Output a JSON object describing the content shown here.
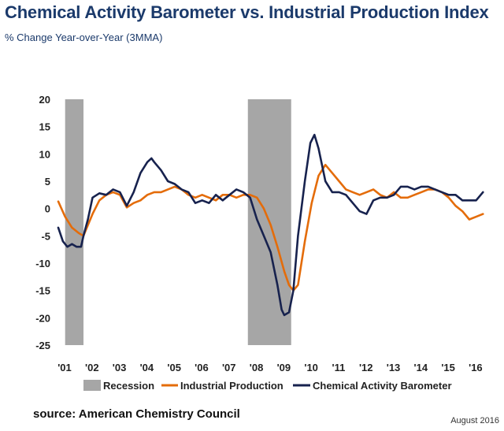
{
  "title": "Chemical Activity Barometer vs. Industrial Production Index",
  "subtitle": "% Change Year-over-Year (3MMA)",
  "source": "source: American Chemistry Council",
  "date": "August 2016",
  "colors": {
    "recession": "#a6a6a6",
    "industrial": "#e46c0a",
    "cab": "#17224e",
    "title": "#1b3a6b"
  },
  "chart_data": {
    "type": "line",
    "title": "Chemical Activity Barometer vs. Industrial Production Index",
    "subtitle": "% Change Year-over-Year (3MMA)",
    "xlabel": "",
    "ylabel": "",
    "xlim": [
      2001.0,
      2016.75
    ],
    "ylim": [
      -25,
      20
    ],
    "yticks": [
      20,
      15,
      10,
      5,
      0,
      -5,
      -10,
      -15,
      -20,
      -25
    ],
    "xticks": [
      "'01",
      "'02",
      "'03",
      "'04",
      "'05",
      "'06",
      "'07",
      "'08",
      "'09",
      "'10",
      "'11",
      "'12",
      "'13",
      "'14",
      "'15",
      "'16"
    ],
    "grid": false,
    "legend_position": "bottom",
    "recessions": [
      [
        2001.25,
        2001.92
      ],
      [
        2007.92,
        2009.5
      ]
    ],
    "legend": [
      "Recession",
      "Industrial Production",
      "Chemical Activity Barometer"
    ],
    "series": [
      {
        "name": "Industrial Production",
        "x": [
          2001.0,
          2001.25,
          2001.5,
          2001.75,
          2001.92,
          2002.25,
          2002.5,
          2002.75,
          2003.0,
          2003.25,
          2003.5,
          2003.75,
          2004.0,
          2004.25,
          2004.5,
          2004.75,
          2005.0,
          2005.25,
          2005.5,
          2005.75,
          2006.0,
          2006.25,
          2006.5,
          2006.75,
          2007.0,
          2007.25,
          2007.5,
          2007.75,
          2008.0,
          2008.25,
          2008.5,
          2008.75,
          2009.0,
          2009.25,
          2009.42,
          2009.58,
          2009.75,
          2010.0,
          2010.25,
          2010.5,
          2010.75,
          2011.0,
          2011.25,
          2011.5,
          2011.75,
          2012.0,
          2012.25,
          2012.5,
          2012.75,
          2013.0,
          2013.25,
          2013.5,
          2013.75,
          2014.0,
          2014.25,
          2014.5,
          2014.75,
          2015.0,
          2015.25,
          2015.5,
          2015.75,
          2016.0,
          2016.25,
          2016.5
        ],
        "y": [
          1.3,
          -1.5,
          -3.5,
          -4.5,
          -5.0,
          -1.0,
          1.5,
          2.5,
          3.0,
          2.5,
          0.2,
          1.0,
          1.5,
          2.5,
          3.0,
          3.0,
          3.5,
          4.0,
          3.5,
          2.5,
          2.0,
          2.5,
          2.0,
          1.5,
          2.5,
          2.5,
          2.0,
          2.5,
          2.5,
          2.0,
          0.0,
          -3.0,
          -7.0,
          -11.5,
          -14.0,
          -15.0,
          -14.0,
          -6.0,
          1.0,
          6.0,
          8.0,
          6.5,
          5.0,
          3.5,
          3.0,
          2.5,
          3.0,
          3.5,
          2.5,
          2.0,
          3.0,
          2.0,
          2.0,
          2.5,
          3.0,
          3.5,
          3.5,
          3.0,
          2.0,
          0.5,
          -0.5,
          -2.0,
          -1.5,
          -1.0
        ]
      },
      {
        "name": "Chemical Activity Barometer",
        "x": [
          2001.0,
          2001.17,
          2001.33,
          2001.5,
          2001.67,
          2001.83,
          2001.92,
          2002.08,
          2002.25,
          2002.5,
          2002.75,
          2003.0,
          2003.25,
          2003.5,
          2003.75,
          2004.0,
          2004.25,
          2004.4,
          2004.5,
          2004.75,
          2005.0,
          2005.25,
          2005.5,
          2005.75,
          2006.0,
          2006.25,
          2006.5,
          2006.75,
          2007.0,
          2007.25,
          2007.5,
          2007.75,
          2008.0,
          2008.25,
          2008.5,
          2008.75,
          2009.0,
          2009.15,
          2009.25,
          2009.42,
          2009.58,
          2009.75,
          2010.0,
          2010.2,
          2010.35,
          2010.5,
          2010.75,
          2011.0,
          2011.25,
          2011.5,
          2011.75,
          2012.0,
          2012.25,
          2012.5,
          2012.75,
          2013.0,
          2013.25,
          2013.5,
          2013.75,
          2014.0,
          2014.25,
          2014.5,
          2014.75,
          2015.0,
          2015.25,
          2015.5,
          2015.75,
          2016.0,
          2016.25,
          2016.5
        ],
        "y": [
          -3.5,
          -6.0,
          -7.0,
          -6.5,
          -7.0,
          -7.0,
          -5.0,
          -2.0,
          2.0,
          2.8,
          2.5,
          3.5,
          3.0,
          0.5,
          3.0,
          6.5,
          8.5,
          9.2,
          8.5,
          7.0,
          5.0,
          4.5,
          3.5,
          3.0,
          1.0,
          1.5,
          1.0,
          2.5,
          1.5,
          2.5,
          3.5,
          3.0,
          2.0,
          -2.0,
          -5.0,
          -8.0,
          -14.0,
          -18.5,
          -19.5,
          -19.0,
          -15.0,
          -5.0,
          5.0,
          12.0,
          13.5,
          11.0,
          5.0,
          3.0,
          3.0,
          2.5,
          1.0,
          -0.5,
          -1.0,
          1.5,
          2.0,
          2.0,
          2.5,
          4.0,
          4.0,
          3.5,
          4.0,
          4.0,
          3.5,
          3.0,
          2.5,
          2.5,
          1.5,
          1.5,
          1.5,
          3.0
        ]
      }
    ]
  }
}
